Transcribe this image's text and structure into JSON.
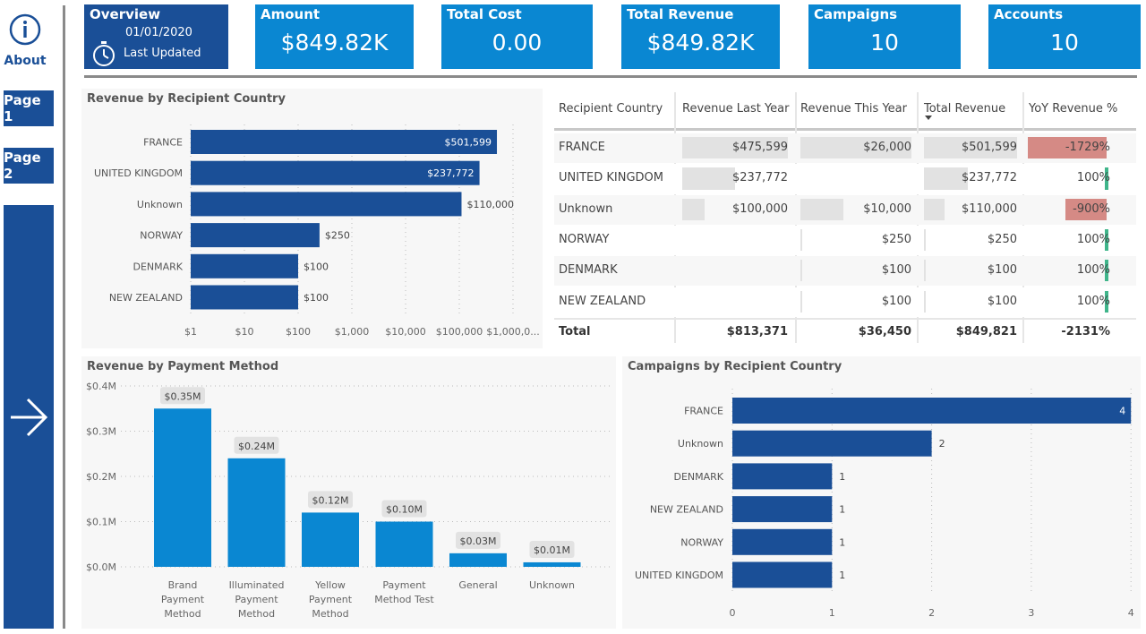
{
  "nav": {
    "about_label": "About",
    "page1": "Page 1",
    "page2": "Page 2"
  },
  "overview": {
    "title": "Overview",
    "date": "01/01/2020",
    "updated": "Last Updated"
  },
  "cards": [
    {
      "title": "Amount",
      "value": "$849.82K"
    },
    {
      "title": "Total Cost",
      "value": "0.00"
    },
    {
      "title": "Total Revenue",
      "value": "$849.82K"
    },
    {
      "title": "Campaigns",
      "value": "10"
    },
    {
      "title": "Accounts",
      "value": "10"
    }
  ],
  "revenue_country_title": "Revenue by Recipient Country",
  "payment_title": "Revenue by Payment Method",
  "campaigns_title": "Campaigns by Recipient Country",
  "table": {
    "headers": [
      "Recipient Country",
      "Revenue Last Year",
      "Revenue This Year",
      "Total Revenue",
      "YoY Revenue %"
    ],
    "rows": [
      {
        "country": "FRANCE",
        "last": "$475,599",
        "this": "$26,000",
        "total": "$501,599",
        "yoy": "-1729%"
      },
      {
        "country": "UNITED KINGDOM",
        "last": "$237,772",
        "this": "",
        "total": "$237,772",
        "yoy": "100%"
      },
      {
        "country": "Unknown",
        "last": "$100,000",
        "this": "$10,000",
        "total": "$110,000",
        "yoy": "-900%"
      },
      {
        "country": "NORWAY",
        "last": "",
        "this": "$250",
        "total": "$250",
        "yoy": "100%"
      },
      {
        "country": "DENMARK",
        "last": "",
        "this": "$100",
        "total": "$100",
        "yoy": "100%"
      },
      {
        "country": "NEW ZEALAND",
        "last": "",
        "this": "$100",
        "total": "$100",
        "yoy": "100%"
      }
    ],
    "total": {
      "label": "Total",
      "last": "$813,371",
      "this": "$36,450",
      "total": "$849,821",
      "yoy": "-2131%"
    }
  },
  "colors": {
    "dark_blue": "#1a4f97",
    "light_blue": "#0a87d2",
    "negative": "#d58a85",
    "positive": "#3fb58a"
  },
  "chart_data": [
    {
      "type": "bar",
      "orientation": "horizontal",
      "title": "Revenue by Recipient Country",
      "scale": "log",
      "categories": [
        "FRANCE",
        "UNITED KINGDOM",
        "Unknown",
        "NORWAY",
        "DENMARK",
        "NEW ZEALAND"
      ],
      "values": [
        501599,
        237772,
        110000,
        250,
        100,
        100
      ],
      "labels": [
        "$501,599",
        "$237,772",
        "$110,000",
        "$250",
        "$100",
        "$100"
      ],
      "ticks": [
        "$1",
        "$10",
        "$100",
        "$1,000",
        "$10,000",
        "$100,000",
        "$1,000,0..."
      ]
    },
    {
      "type": "bar",
      "title": "Revenue by Payment Method",
      "categories": [
        "Brand Payment Method",
        "Illuminated Payment Method",
        "Yellow Payment Method",
        "Payment Method Test",
        "General",
        "Unknown"
      ],
      "category_lines": [
        [
          "Brand",
          "Payment",
          "Method"
        ],
        [
          "Illuminated",
          "Payment",
          "Method"
        ],
        [
          "Yellow",
          "Payment",
          "Method"
        ],
        [
          "Payment",
          "Method Test"
        ],
        [
          "General"
        ],
        [
          "Unknown"
        ]
      ],
      "values": [
        0.35,
        0.24,
        0.12,
        0.1,
        0.03,
        0.01
      ],
      "labels": [
        "$0.35M",
        "$0.24M",
        "$0.12M",
        "$0.10M",
        "$0.03M",
        "$0.01M"
      ],
      "ylim": [
        0,
        0.4
      ],
      "yticks": [
        "$0.0M",
        "$0.1M",
        "$0.2M",
        "$0.3M",
        "$0.4M"
      ]
    },
    {
      "type": "bar",
      "orientation": "horizontal",
      "title": "Campaigns by Recipient Country",
      "categories": [
        "FRANCE",
        "Unknown",
        "DENMARK",
        "NEW ZEALAND",
        "NORWAY",
        "UNITED KINGDOM"
      ],
      "values": [
        4,
        2,
        1,
        1,
        1,
        1
      ],
      "xlim": [
        0,
        4
      ],
      "xticks": [
        "0",
        "1",
        "2",
        "3",
        "4"
      ]
    }
  ]
}
